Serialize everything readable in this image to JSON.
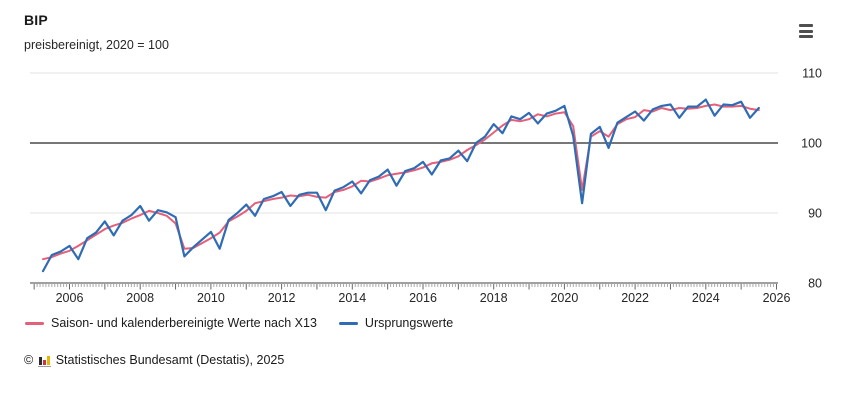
{
  "header": {
    "title": "BIP",
    "subtitle": "preisbereinigt, 2020 = 100"
  },
  "icons": {
    "menu": "hamburger-icon",
    "source_logo": "destatis-bar-chart-icon"
  },
  "colors": {
    "adjusted_series": "#e4607a",
    "original_series": "#2f6cb3",
    "reference_line": "#4a4a4a",
    "gridline": "#e3e3e3",
    "axis_line": "#808080",
    "tick": "#a8a8a8",
    "label_text": "#262626"
  },
  "chart_data": {
    "type": "line",
    "title": "BIP",
    "subtitle": "preisbereinigt, 2020 = 100",
    "frequency": "quarterly",
    "x_range_start": "2005-Q1",
    "x_range_end": "2025-Q2",
    "xlim": [
      2005,
      2026
    ],
    "ylim": [
      80,
      110
    ],
    "y_ticks": [
      80,
      90,
      100,
      110
    ],
    "x_tick_years": [
      2006,
      2008,
      2010,
      2012,
      2014,
      2016,
      2018,
      2020,
      2022,
      2024,
      2026
    ],
    "reference_line": 100,
    "grid": true,
    "legend_position": "bottom-left",
    "series": [
      {
        "name": "Saison- und kalenderbereinigte Werte nach X13",
        "color": "#e4607a",
        "values": [
          83.4,
          83.7,
          84.2,
          84.6,
          85.3,
          86.1,
          86.9,
          87.7,
          88.2,
          88.6,
          89.2,
          89.7,
          90.3,
          90.0,
          89.6,
          88.5,
          84.9,
          85.0,
          85.7,
          86.4,
          87.2,
          88.8,
          89.5,
          90.3,
          91.4,
          91.7,
          92.0,
          92.2,
          92.5,
          92.4,
          92.6,
          92.3,
          92.2,
          93.0,
          93.3,
          93.8,
          94.6,
          94.5,
          94.9,
          95.4,
          95.6,
          95.8,
          96.1,
          96.5,
          97.1,
          97.3,
          97.6,
          98.1,
          99.0,
          99.7,
          100.5,
          101.5,
          102.5,
          103.3,
          103.1,
          103.4,
          104.1,
          103.8,
          104.2,
          104.4,
          102.4,
          93.3,
          100.9,
          101.7,
          100.9,
          102.7,
          103.4,
          103.7,
          104.7,
          104.5,
          105.0,
          104.7,
          105.0,
          104.9,
          105.0,
          105.3,
          105.5,
          105.2,
          105.2,
          105.3,
          104.9,
          104.7
        ]
      },
      {
        "name": "Ursprungswerte",
        "color": "#2f6cb3",
        "values": [
          81.7,
          84.0,
          84.5,
          85.3,
          83.4,
          86.4,
          87.2,
          88.8,
          86.8,
          88.9,
          89.7,
          91.0,
          88.9,
          90.4,
          90.1,
          89.4,
          83.8,
          85.1,
          86.2,
          87.3,
          84.9,
          89.0,
          90.0,
          91.2,
          89.6,
          92.0,
          92.4,
          93.0,
          91.0,
          92.6,
          92.9,
          92.9,
          90.4,
          93.2,
          93.7,
          94.5,
          92.8,
          94.7,
          95.2,
          96.2,
          93.9,
          96.0,
          96.4,
          97.3,
          95.5,
          97.5,
          97.8,
          98.9,
          97.4,
          100.0,
          100.9,
          102.7,
          101.4,
          103.8,
          103.4,
          104.3,
          102.8,
          104.2,
          104.6,
          105.3,
          101.0,
          91.4,
          101.3,
          102.3,
          99.3,
          102.9,
          103.7,
          104.5,
          103.2,
          104.8,
          105.3,
          105.5,
          103.6,
          105.2,
          105.2,
          106.2,
          103.9,
          105.5,
          105.4,
          105.9,
          103.6,
          105.0
        ]
      }
    ]
  },
  "legend": {
    "items": [
      {
        "label": "Saison- und kalenderbereinigte Werte nach X13",
        "color": "#e4607a"
      },
      {
        "label": "Ursprungswerte",
        "color": "#2f6cb3"
      }
    ]
  },
  "footer": {
    "copyright": "©",
    "source": "Statistisches Bundesamt (Destatis), 2025"
  }
}
